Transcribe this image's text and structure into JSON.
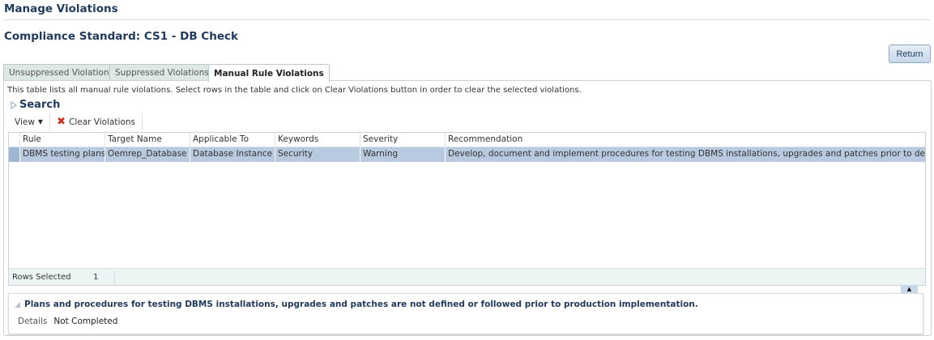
{
  "header": {
    "title": "Manage Violations",
    "subtitle": "Compliance Standard: CS1 - DB Check",
    "return_label": "Return"
  },
  "tabs": [
    {
      "label": "Unsuppressed Violations"
    },
    {
      "label": "Suppressed Violations"
    },
    {
      "label": "Manual Rule Violations",
      "active": true
    }
  ],
  "panel": {
    "description": "This table lists all manual rule violations. Select rows in the table and click on Clear Violations button in order to clear the selected violations.",
    "search_label": "Search"
  },
  "toolbar": {
    "view_label": "View",
    "clear_label": "Clear Violations"
  },
  "table": {
    "columns": [
      "Rule",
      "Target Name",
      "Applicable To",
      "Keywords",
      "Severity",
      "Recommendation"
    ],
    "rows": [
      {
        "rule": "DBMS testing plans...",
        "target": "Oemrep_Database",
        "applicable": "Database Instance",
        "keywords": "Security",
        "severity": "Warning",
        "recommendation": "Develop, document and implement procedures for testing DBMS installations, upgrades and patches prior to deployment ..."
      }
    ],
    "footer": {
      "rows_selected_label": "Rows Selected",
      "rows_selected_value": "1"
    }
  },
  "detail": {
    "title": "Plans and procedures for testing DBMS installations, upgrades and patches are not defined or followed prior to production implementation.",
    "details_label": "Details",
    "details_value": "Not Completed"
  },
  "colors": {
    "accent": "#1f3a5c",
    "selected_row": "#b8c9e0"
  }
}
